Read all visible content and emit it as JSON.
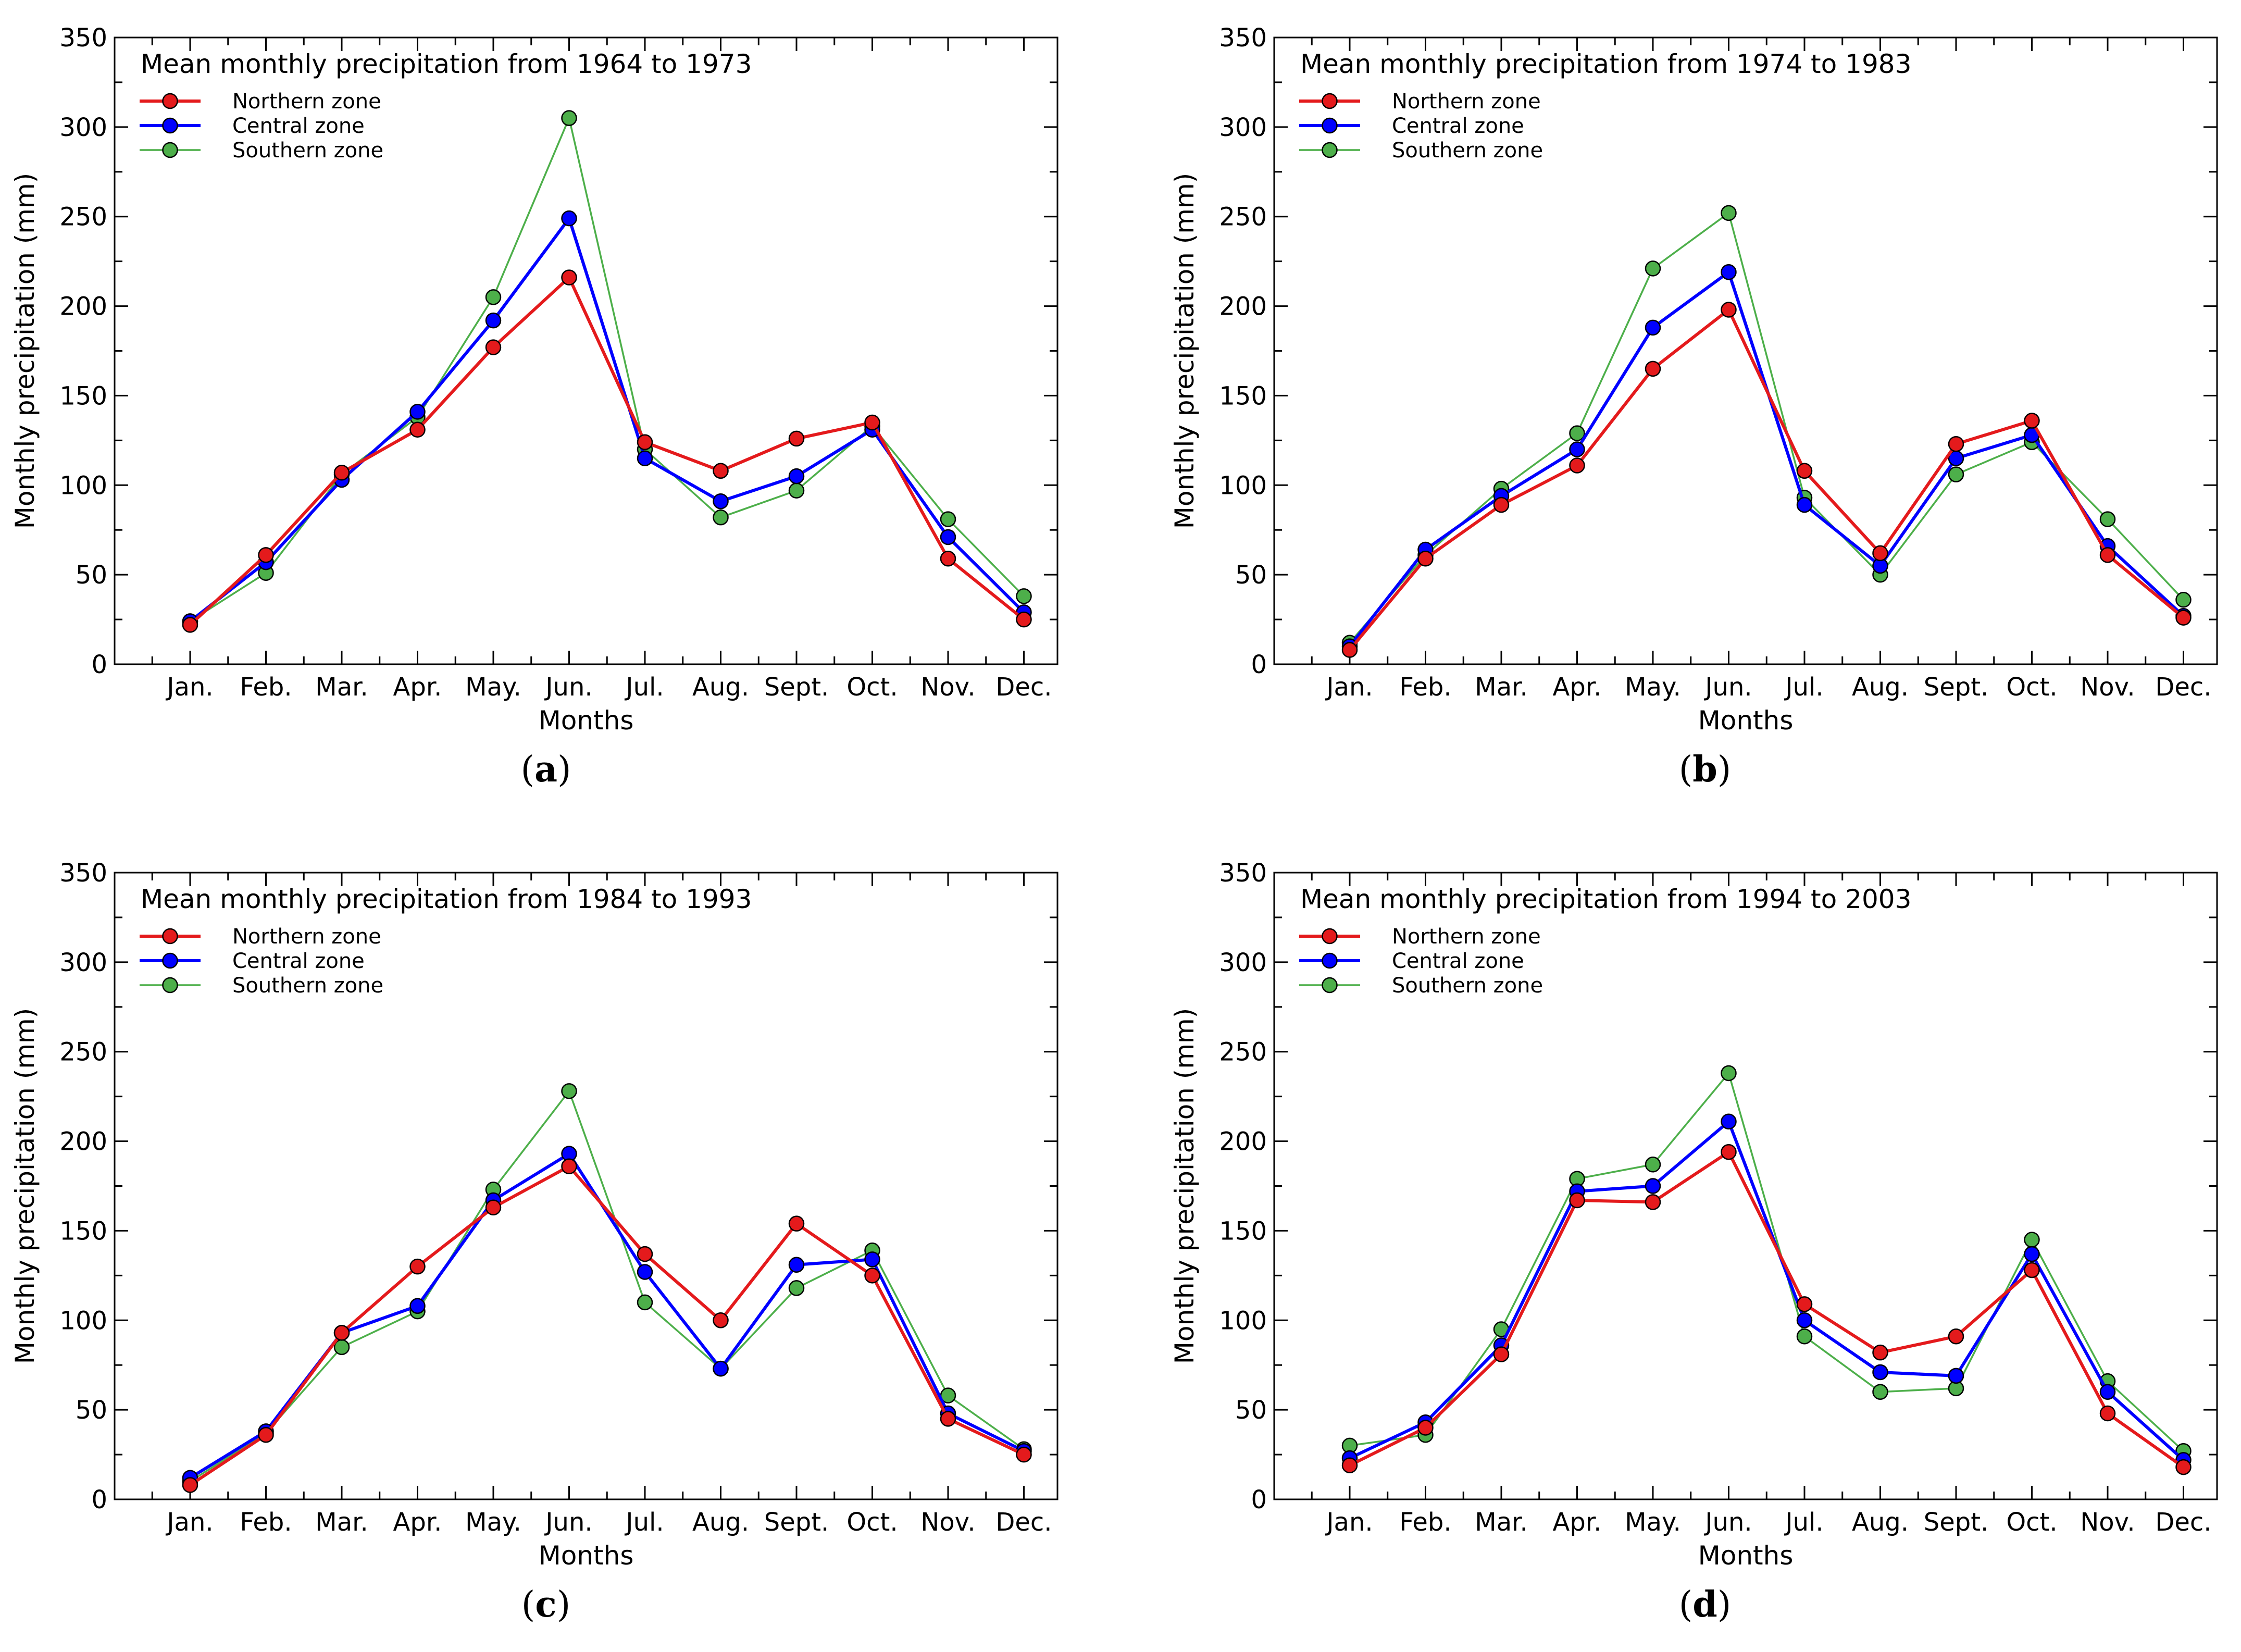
{
  "chart_data": [
    {
      "type": "line",
      "title": "Mean monthly precipitation from 1964 to 1973",
      "caption": "a",
      "xlabel": "Months",
      "ylabel": "Monthly precipitation (mm)",
      "ylim": [
        0,
        350
      ],
      "yticks": [
        0,
        50,
        100,
        150,
        200,
        250,
        300,
        350
      ],
      "categories": [
        "Jan.",
        "Feb.",
        "Mar.",
        "Apr.",
        "May.",
        "Jun.",
        "Jul.",
        "Aug.",
        "Sept.",
        "Oct.",
        "Nov.",
        "Dec."
      ],
      "legend": "top-left",
      "grid": false,
      "series": [
        {
          "name": "Northern zone",
          "color": "#e41a1c",
          "values": [
            22,
            61,
            107,
            131,
            177,
            216,
            124,
            108,
            126,
            135,
            59,
            25
          ]
        },
        {
          "name": "Central zone",
          "color": "#0000ff",
          "values": [
            24,
            57,
            103,
            141,
            192,
            249,
            115,
            91,
            105,
            131,
            71,
            29
          ]
        },
        {
          "name": "Southern zone",
          "color": "#4daf4a",
          "values": [
            24,
            51,
            106,
            138,
            205,
            305,
            120,
            82,
            97,
            133,
            81,
            38
          ]
        }
      ]
    },
    {
      "type": "line",
      "title": "Mean monthly precipitation from 1974 to 1983",
      "caption": "b",
      "xlabel": "Months",
      "ylabel": "Monthly precipitation (mm)",
      "ylim": [
        0,
        350
      ],
      "yticks": [
        0,
        50,
        100,
        150,
        200,
        250,
        300,
        350
      ],
      "categories": [
        "Jan.",
        "Feb.",
        "Mar.",
        "Apr.",
        "May.",
        "Jun.",
        "Jul.",
        "Aug.",
        "Sept.",
        "Oct.",
        "Nov.",
        "Dec."
      ],
      "legend": "top-left",
      "grid": false,
      "series": [
        {
          "name": "Northern zone",
          "color": "#e41a1c",
          "values": [
            8,
            59,
            89,
            111,
            165,
            198,
            108,
            62,
            123,
            136,
            61,
            26
          ]
        },
        {
          "name": "Central zone",
          "color": "#0000ff",
          "values": [
            10,
            64,
            94,
            120,
            188,
            219,
            89,
            55,
            115,
            128,
            66,
            27
          ]
        },
        {
          "name": "Southern zone",
          "color": "#4daf4a",
          "values": [
            12,
            61,
            98,
            129,
            221,
            252,
            93,
            50,
            106,
            124,
            81,
            36
          ]
        }
      ]
    },
    {
      "type": "line",
      "title": "Mean monthly precipitation from 1984 to 1993",
      "caption": "c",
      "xlabel": "Months",
      "ylabel": "Monthly precipitation (mm)",
      "ylim": [
        0,
        350
      ],
      "yticks": [
        0,
        50,
        100,
        150,
        200,
        250,
        300,
        350
      ],
      "categories": [
        "Jan.",
        "Feb.",
        "Mar.",
        "Apr.",
        "May.",
        "Jun.",
        "Jul.",
        "Aug.",
        "Sept.",
        "Oct.",
        "Nov.",
        "Dec."
      ],
      "legend": "top-left",
      "grid": false,
      "series": [
        {
          "name": "Northern zone",
          "color": "#e41a1c",
          "values": [
            8,
            36,
            93,
            130,
            163,
            186,
            137,
            100,
            154,
            125,
            45,
            25
          ]
        },
        {
          "name": "Central zone",
          "color": "#0000ff",
          "values": [
            12,
            38,
            93,
            108,
            167,
            193,
            127,
            73,
            131,
            134,
            48,
            27
          ]
        },
        {
          "name": "Southern zone",
          "color": "#4daf4a",
          "values": [
            10,
            37,
            85,
            105,
            173,
            228,
            110,
            73,
            118,
            139,
            58,
            28
          ]
        }
      ]
    },
    {
      "type": "line",
      "title": "Mean monthly precipitation from 1994 to 2003",
      "caption": "d",
      "xlabel": "Months",
      "ylabel": "Monthly precipitation (mm)",
      "ylim": [
        0,
        350
      ],
      "yticks": [
        0,
        50,
        100,
        150,
        200,
        250,
        300,
        350
      ],
      "categories": [
        "Jan.",
        "Feb.",
        "Mar.",
        "Apr.",
        "May.",
        "Jun.",
        "Jul.",
        "Aug.",
        "Sept.",
        "Oct.",
        "Nov.",
        "Dec."
      ],
      "legend": "top-left",
      "grid": false,
      "series": [
        {
          "name": "Northern zone",
          "color": "#e41a1c",
          "values": [
            19,
            40,
            81,
            167,
            166,
            194,
            109,
            82,
            91,
            128,
            48,
            18
          ]
        },
        {
          "name": "Central zone",
          "color": "#0000ff",
          "values": [
            23,
            43,
            86,
            172,
            175,
            211,
            100,
            71,
            69,
            137,
            60,
            22
          ]
        },
        {
          "name": "Southern zone",
          "color": "#4daf4a",
          "values": [
            30,
            36,
            95,
            179,
            187,
            238,
            91,
            60,
            62,
            145,
            66,
            27
          ]
        }
      ]
    }
  ]
}
